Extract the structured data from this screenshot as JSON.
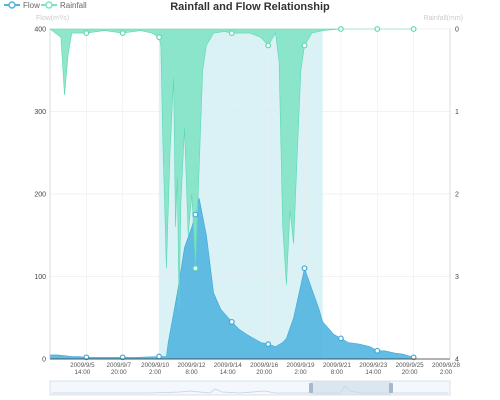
{
  "chart_data": {
    "type": "area",
    "title": "Rainfall and Flow Relationship",
    "legend": {
      "position": "top-left",
      "items": [
        {
          "name": "Flow",
          "color": "#52b5e0"
        },
        {
          "name": "Rainfall",
          "color": "#7ee3c4"
        }
      ]
    },
    "y_left": {
      "name": "Flow(m³/s)",
      "min": 0,
      "max": 400,
      "ticks": [
        "0",
        "100",
        "200",
        "300",
        "400"
      ]
    },
    "y_right": {
      "name": "Rainfall(mm)",
      "min": 0,
      "max": 4,
      "inverse": true,
      "ticks": [
        "0",
        "1",
        "2",
        "3",
        "4"
      ]
    },
    "x_tick_labels": [
      [
        "2009/9/5",
        "14:00"
      ],
      [
        "2009/9/7",
        "20:00"
      ],
      [
        "2009/9/10",
        "2:00"
      ],
      [
        "2009/9/12",
        "8:00"
      ],
      [
        "2009/9/14",
        "14:00"
      ],
      [
        "2009/9/16",
        "20:00"
      ],
      [
        "2009/9/19",
        "2:00"
      ],
      [
        "2009/9/21",
        "8:00"
      ],
      [
        "2009/9/23",
        "14:00"
      ],
      [
        "2009/9/25",
        "20:00"
      ],
      [
        "2009/9/28",
        "2:00"
      ]
    ],
    "grid": true,
    "highlight_window": {
      "start": "2009/9/12 8:00",
      "end": "2009/9/21 14:00",
      "color": "#d6f1f5"
    },
    "series": [
      {
        "name": "Flow",
        "color": "#52b5e0",
        "t": [
          0,
          0.2,
          0.4,
          0.6,
          0.8,
          1.0,
          1.5,
          2.0,
          2.3,
          3.0,
          3.2,
          3.25,
          3.5,
          3.7,
          3.9,
          4.0,
          4.1,
          4.3,
          4.5,
          4.7,
          5.0,
          5.2,
          5.4,
          5.6,
          5.8,
          6.0,
          6.2,
          6.4,
          6.5,
          6.7,
          6.9,
          7.0,
          7.2,
          7.4,
          7.5,
          7.7,
          7.8,
          8.0,
          8.2,
          8.5,
          8.8,
          9.0,
          9.2,
          9.4,
          9.5,
          9.7,
          10.0
        ],
        "values": [
          5,
          5,
          4,
          3,
          3,
          2,
          2,
          2,
          2,
          3,
          3,
          20,
          80,
          135,
          160,
          175,
          195,
          150,
          80,
          60,
          45,
          36,
          30,
          25,
          20,
          18,
          15,
          20,
          25,
          50,
          90,
          110,
          85,
          60,
          45,
          35,
          30,
          25,
          20,
          18,
          15,
          10,
          10,
          8,
          7,
          6,
          2
        ]
      },
      {
        "name": "Rainfall",
        "color": "#7ee3c4",
        "t": [
          0,
          0.3,
          0.4,
          0.5,
          0.6,
          1.0,
          1.5,
          2.0,
          2.5,
          2.8,
          3.0,
          3.05,
          3.1,
          3.2,
          3.3,
          3.4,
          3.45,
          3.5,
          3.55,
          3.6,
          3.7,
          3.8,
          3.9,
          4.0,
          4.05,
          4.2,
          4.3,
          4.5,
          4.8,
          5.0,
          5.5,
          5.8,
          6.0,
          6.2,
          6.3,
          6.4,
          6.5,
          6.6,
          6.7,
          6.8,
          6.9,
          7.0,
          7.2,
          7.5,
          8.0,
          9.0,
          10.0
        ],
        "values": [
          0,
          0.1,
          0.8,
          0.3,
          0.05,
          0.05,
          0.02,
          0.05,
          0.02,
          0.05,
          0.1,
          0.2,
          1.3,
          2.9,
          1.5,
          0.6,
          2.4,
          1.8,
          3.4,
          2.1,
          1.2,
          2.5,
          2.0,
          2.9,
          2.3,
          0.5,
          0.2,
          0.05,
          0.03,
          0.05,
          0.05,
          0.1,
          0.2,
          0.05,
          0.4,
          2.4,
          3.1,
          2.2,
          2.6,
          1.5,
          0.5,
          0.2,
          0.05,
          0.02,
          0.0,
          0.0,
          0.0
        ]
      }
    ]
  }
}
